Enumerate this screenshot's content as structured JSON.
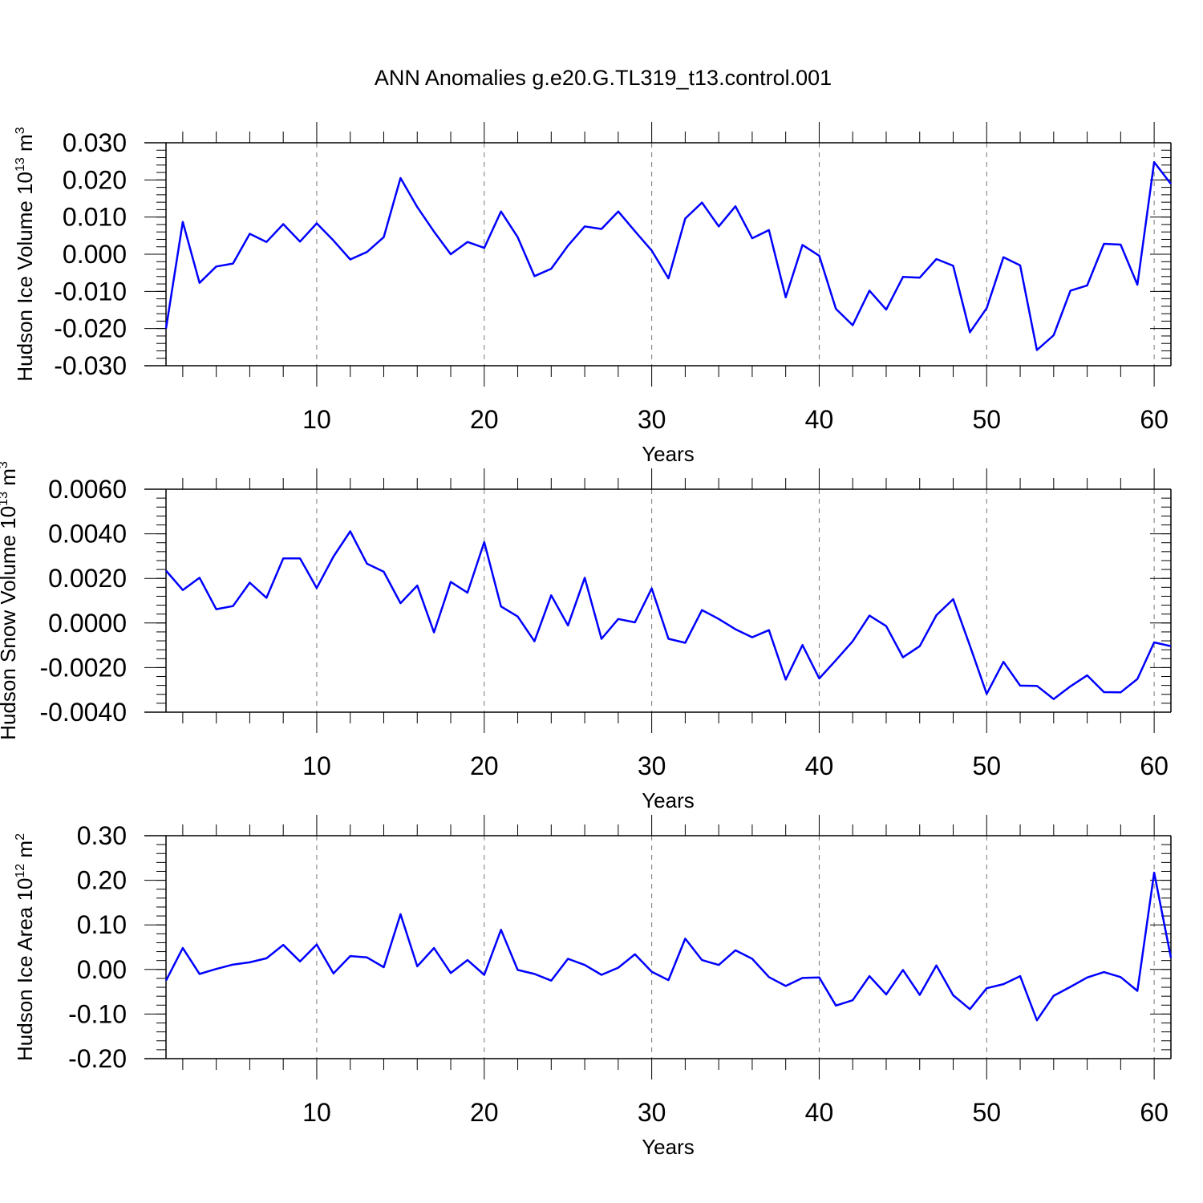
{
  "title": "ANN Anomalies g.e20.G.TL319_t13.control.001",
  "colors": {
    "series": "#0000ff",
    "grid": "#777777",
    "axis": "#000000"
  },
  "chart_data": [
    {
      "type": "line",
      "ylabel": "Hudson Ice Volume 10",
      "ylabel_sup": "13",
      "ylabel_unit": " m",
      "ylabel_unit_sup": "3",
      "xlabel": "Years",
      "xlim": [
        1,
        61
      ],
      "ylim": [
        -0.03,
        0.03
      ],
      "yticks": [
        -0.03,
        -0.02,
        -0.01,
        0.0,
        0.01,
        0.02,
        0.03
      ],
      "ytick_labels": [
        "-0.030",
        "-0.020",
        "-0.010",
        "0.000",
        "0.010",
        "0.020",
        "0.030"
      ],
      "yminor": 0.002,
      "xticks": [
        10,
        20,
        30,
        40,
        50,
        60
      ],
      "xtick_labels": [
        "10",
        "20",
        "30",
        "40",
        "50",
        "60"
      ],
      "grid": "vertical dashed at major x ticks",
      "x": [
        1,
        2,
        3,
        4,
        5,
        6,
        7,
        8,
        9,
        10,
        11,
        12,
        13,
        14,
        15,
        16,
        17,
        18,
        19,
        20,
        21,
        22,
        23,
        24,
        25,
        26,
        27,
        28,
        29,
        30,
        31,
        32,
        33,
        34,
        35,
        36,
        37,
        38,
        39,
        40,
        41,
        42,
        43,
        44,
        45,
        46,
        47,
        48,
        49,
        50,
        51,
        52,
        53,
        54,
        55,
        56,
        57,
        58,
        59,
        60,
        61
      ],
      "values": [
        -0.02,
        0.0087,
        -0.0077,
        -0.0033,
        -0.0025,
        0.0055,
        0.0033,
        0.0081,
        0.0034,
        0.0083,
        0.0037,
        -0.0014,
        0.0006,
        0.0046,
        0.0205,
        0.0127,
        0.0061,
        0.0,
        0.0033,
        0.0017,
        0.0115,
        0.0046,
        -0.0059,
        -0.0039,
        0.0023,
        0.0075,
        0.0068,
        0.0115,
        0.0062,
        0.001,
        -0.0065,
        0.0096,
        0.0139,
        0.0075,
        0.0129,
        0.0043,
        0.0065,
        -0.0116,
        0.0025,
        -0.0004,
        -0.0147,
        -0.0191,
        -0.0098,
        -0.0149,
        -0.0061,
        -0.0063,
        -0.0013,
        -0.0031,
        -0.021,
        -0.0145,
        -0.0008,
        -0.003,
        -0.0258,
        -0.0218,
        -0.0098,
        -0.0084,
        0.0028,
        0.0026,
        -0.0082,
        0.0248,
        0.0189
      ]
    },
    {
      "type": "line",
      "ylabel": "Hudson Snow Volume 10",
      "ylabel_sup": "13",
      "ylabel_unit": " m",
      "ylabel_unit_sup": "3",
      "xlabel": "Years",
      "xlim": [
        1,
        61
      ],
      "ylim": [
        -0.004,
        0.006
      ],
      "yticks": [
        -0.004,
        -0.002,
        0.0,
        0.002,
        0.004,
        0.006
      ],
      "ytick_labels": [
        "-0.0040",
        "-0.0020",
        "0.0000",
        "0.0020",
        "0.0040",
        "0.0060"
      ],
      "yminor": 0.0004,
      "xticks": [
        10,
        20,
        30,
        40,
        50,
        60
      ],
      "xtick_labels": [
        "10",
        "20",
        "30",
        "40",
        "50",
        "60"
      ],
      "grid": "vertical dashed at major x ticks",
      "x": [
        1,
        2,
        3,
        4,
        5,
        6,
        7,
        8,
        9,
        10,
        11,
        12,
        13,
        14,
        15,
        16,
        17,
        18,
        19,
        20,
        21,
        22,
        23,
        24,
        25,
        26,
        27,
        28,
        29,
        30,
        31,
        32,
        33,
        34,
        35,
        36,
        37,
        38,
        39,
        40,
        41,
        42,
        43,
        44,
        45,
        46,
        47,
        48,
        49,
        50,
        51,
        52,
        53,
        54,
        55,
        56,
        57,
        58,
        59,
        60,
        61
      ],
      "values": [
        0.00235,
        0.00148,
        0.00203,
        0.00062,
        0.00076,
        0.00181,
        0.00113,
        0.0029,
        0.0029,
        0.00157,
        0.00298,
        0.00411,
        0.00266,
        0.0023,
        0.00089,
        0.00168,
        -0.00042,
        0.00184,
        0.00136,
        0.00363,
        0.00074,
        0.00029,
        -0.00082,
        0.00124,
        -0.00011,
        0.00203,
        -0.00071,
        0.00018,
        3e-05,
        0.00155,
        -0.00071,
        -0.00089,
        0.00058,
        0.00018,
        -0.00028,
        -0.00064,
        -0.00032,
        -0.00254,
        -0.00099,
        -0.00249,
        -0.00167,
        -0.00082,
        0.00033,
        -0.00014,
        -0.00154,
        -0.00104,
        0.00035,
        0.00107,
        -0.00102,
        -0.00318,
        -0.00174,
        -0.00281,
        -0.00282,
        -0.00341,
        -0.00284,
        -0.00235,
        -0.0031,
        -0.00311,
        -0.00251,
        -0.00087,
        -0.00104
      ]
    },
    {
      "type": "line",
      "ylabel": "Hudson Ice Area 10",
      "ylabel_sup": "12",
      "ylabel_unit": " m",
      "ylabel_unit_sup": "2",
      "xlabel": "Years",
      "xlim": [
        1,
        61
      ],
      "ylim": [
        -0.2,
        0.3
      ],
      "yticks": [
        -0.2,
        -0.1,
        0.0,
        0.1,
        0.2,
        0.3
      ],
      "ytick_labels": [
        "-0.20",
        "-0.10",
        "0.00",
        "0.10",
        "0.20",
        "0.30"
      ],
      "yminor": 0.02,
      "xticks": [
        10,
        20,
        30,
        40,
        50,
        60
      ],
      "xtick_labels": [
        "10",
        "20",
        "30",
        "40",
        "50",
        "60"
      ],
      "grid": "vertical dashed at major x ticks",
      "x": [
        1,
        2,
        3,
        4,
        5,
        6,
        7,
        8,
        9,
        10,
        11,
        12,
        13,
        14,
        15,
        16,
        17,
        18,
        19,
        20,
        21,
        22,
        23,
        24,
        25,
        26,
        27,
        28,
        29,
        30,
        31,
        32,
        33,
        34,
        35,
        36,
        37,
        38,
        39,
        40,
        41,
        42,
        43,
        44,
        45,
        46,
        47,
        48,
        49,
        50,
        51,
        52,
        53,
        54,
        55,
        56,
        57,
        58,
        59,
        60,
        61
      ],
      "values": [
        -0.025,
        0.048,
        -0.01,
        0.001,
        0.011,
        0.016,
        0.025,
        0.055,
        0.018,
        0.056,
        -0.009,
        0.03,
        0.027,
        0.005,
        0.124,
        0.007,
        0.048,
        -0.008,
        0.021,
        -0.012,
        0.089,
        -0.001,
        -0.01,
        -0.025,
        0.024,
        0.01,
        -0.012,
        0.004,
        0.034,
        -0.005,
        -0.024,
        0.069,
        0.021,
        0.01,
        0.043,
        0.024,
        -0.017,
        -0.037,
        -0.019,
        -0.018,
        -0.081,
        -0.069,
        -0.015,
        -0.056,
        -0.001,
        -0.057,
        0.009,
        -0.058,
        -0.089,
        -0.042,
        -0.033,
        -0.015,
        -0.114,
        -0.059,
        -0.039,
        -0.018,
        -0.006,
        -0.017,
        -0.048,
        0.217,
        0.026
      ]
    }
  ]
}
